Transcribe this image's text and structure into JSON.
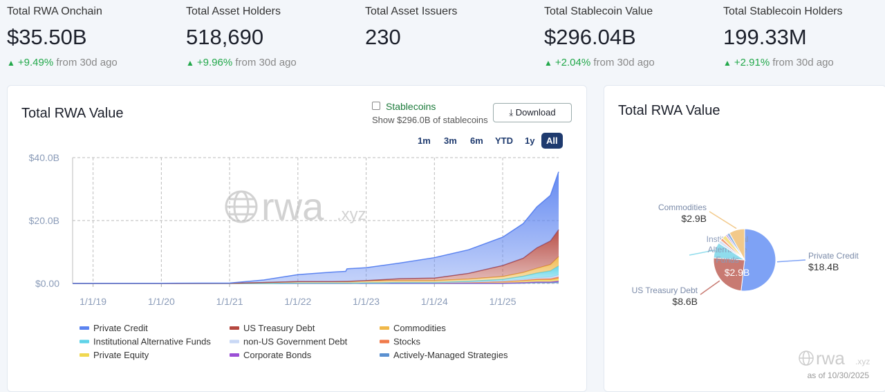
{
  "stats": [
    {
      "label": "Total RWA Onchain",
      "value": "$35.50B",
      "change": "+9.49%",
      "suffix": "from 30d ago"
    },
    {
      "label": "Total Asset Holders",
      "value": "518,690",
      "change": "+9.96%",
      "suffix": "from 30d ago"
    },
    {
      "label": "Total Asset Issuers",
      "value": "230"
    },
    {
      "label": "Total Stablecoin Value",
      "value": "$296.04B",
      "change": "+2.04%",
      "suffix": "from 30d ago"
    },
    {
      "label": "Total Stablecoin Holders",
      "value": "199.33M",
      "change": "+2.91%",
      "suffix": "from 30d ago"
    }
  ],
  "controls": {
    "stablecoins": "Stablecoins",
    "stablecoins_note": "Show $296.0B of stablecoins",
    "download": "Download",
    "ranges": [
      "1m",
      "3m",
      "6m",
      "YTD",
      "1y",
      "All"
    ],
    "active_range": "All"
  },
  "watermark": {
    "name": "rwa",
    "suffix": ".xyz",
    "as_of": "as of 10/30/2025"
  },
  "chart_data": [
    {
      "type": "stacked-area",
      "title": "Total RWA Value",
      "x": [
        2018.7,
        2019,
        2020,
        2021,
        2021.5,
        2022,
        2022.5,
        2022.7,
        2022.72,
        2023,
        2023.5,
        2024,
        2024.5,
        2025,
        2025.3,
        2025.5,
        2025.7,
        2025.82
      ],
      "xlim": [
        2018.7,
        2025.82
      ],
      "xticks": [
        {
          "value": 2019,
          "label": "1/1/19"
        },
        {
          "value": 2020,
          "label": "1/1/20"
        },
        {
          "value": 2021,
          "label": "1/1/21"
        },
        {
          "value": 2022,
          "label": "1/1/22"
        },
        {
          "value": 2023,
          "label": "1/1/23"
        },
        {
          "value": 2024,
          "label": "1/1/24"
        },
        {
          "value": 2025,
          "label": "1/1/25"
        }
      ],
      "ylim": [
        0,
        40
      ],
      "yticks": [
        {
          "value": 0,
          "label": "$0.00"
        },
        {
          "value": 20,
          "label": "$20.0B"
        },
        {
          "value": 40,
          "label": "$40.0B"
        }
      ],
      "grid": true,
      "series": [
        {
          "name": "Private Credit",
          "color": "#5b83f0",
          "values": [
            0,
            0.02,
            0.05,
            0.1,
            0.8,
            2.2,
            3.0,
            3.2,
            4.0,
            4.1,
            5.0,
            6.5,
            7.5,
            9.0,
            11.0,
            13.0,
            14.5,
            18.4
          ]
        },
        {
          "name": "US Treasury Debt",
          "color": "#b5473f",
          "values": [
            0,
            0,
            0,
            0,
            0,
            0,
            0,
            0.05,
            0.05,
            0.1,
            0.6,
            0.8,
            1.8,
            3.5,
            4.5,
            6.5,
            7.5,
            8.6
          ]
        },
        {
          "name": "Commodities",
          "color": "#f0b849",
          "values": [
            0,
            0,
            0,
            0.05,
            0.3,
            0.5,
            0.5,
            0.5,
            0.5,
            0.6,
            0.6,
            0.6,
            0.7,
            0.9,
            1.2,
            1.5,
            2.0,
            2.9
          ]
        },
        {
          "name": "Institutional Alternative Funds",
          "color": "#5fd3e8",
          "values": [
            0,
            0,
            0,
            0,
            0,
            0,
            0,
            0,
            0,
            0,
            0,
            0,
            0.2,
            0.5,
            1.0,
            1.5,
            2.0,
            2.9
          ]
        },
        {
          "name": "non-US Government Debt",
          "color": "#c9d8f5",
          "values": [
            0,
            0,
            0,
            0,
            0,
            0,
            0,
            0,
            0,
            0,
            0,
            0,
            0.1,
            0.2,
            0.3,
            0.4,
            0.5,
            0.6
          ]
        },
        {
          "name": "Stocks",
          "color": "#f07a4a",
          "values": [
            0,
            0,
            0,
            0,
            0,
            0,
            0,
            0,
            0,
            0,
            0,
            0,
            0,
            0.1,
            0.2,
            0.3,
            0.4,
            0.5
          ]
        },
        {
          "name": "Private Equity",
          "color": "#f0d850",
          "values": [
            0,
            0,
            0,
            0,
            0,
            0.1,
            0.1,
            0.1,
            0.1,
            0.1,
            0.2,
            0.2,
            0.3,
            0.4,
            0.5,
            0.6,
            0.6,
            0.8
          ]
        },
        {
          "name": "Corporate Bonds",
          "color": "#9b4fd6",
          "values": [
            0,
            0,
            0,
            0,
            0,
            0,
            0,
            0,
            0,
            0.1,
            0.1,
            0.1,
            0.1,
            0.1,
            0.2,
            0.2,
            0.2,
            0.3
          ]
        },
        {
          "name": "Actively-Managed Strategies",
          "color": "#5b90d0",
          "values": [
            0,
            0,
            0,
            0,
            0,
            0,
            0,
            0,
            0,
            0,
            0,
            0,
            0,
            0,
            0.1,
            0.3,
            0.3,
            0.5
          ]
        }
      ]
    },
    {
      "type": "pie",
      "title": "Total RWA Value",
      "categories": [
        "Private Credit",
        "US Treasury Debt",
        "Institutional Alternative Funds",
        null,
        null,
        null,
        null,
        null,
        "Commodities"
      ],
      "values": [
        18.4,
        8.6,
        2.9,
        0.6,
        0.5,
        0.8,
        0.3,
        0.5,
        2.9
      ],
      "value_labels": [
        "$18.4B",
        "$8.6B",
        "$2.9B",
        null,
        null,
        null,
        null,
        null,
        "$2.9B"
      ],
      "colors": [
        "#7ea2f5",
        "#c87a72",
        "#8fdcec",
        "#d6e2f8",
        "#f2a07a",
        "#f5e08a",
        "#b98be0",
        "#8fb2e0",
        "#f2c98a"
      ]
    }
  ]
}
